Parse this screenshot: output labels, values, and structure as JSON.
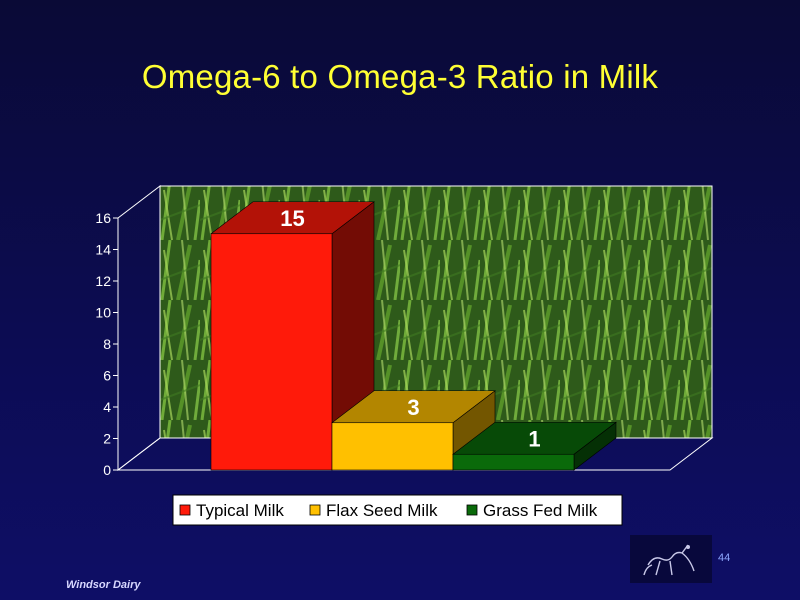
{
  "slide": {
    "title": "Omega-6 to Omega-3 Ratio in Milk",
    "footer": "Windsor Dairy",
    "page_number": "44"
  },
  "colors": {
    "title": "#ffff33",
    "background": "#0c0c52",
    "series": [
      "#ff1a0a",
      "#ffc000",
      "#0a6a0a"
    ]
  },
  "icons": {
    "logo": "horse-and-rider-sketch-logo",
    "plot_background": "grass-photo"
  },
  "chart_data": {
    "type": "bar",
    "style": "3d",
    "categories": [
      "Typical Milk",
      "Flax Seed Milk",
      "Grass Fed Milk"
    ],
    "values": [
      15,
      3,
      1
    ],
    "data_labels": [
      "15",
      "3",
      "1"
    ],
    "ylim": [
      0,
      16
    ],
    "yticks": [
      0,
      2,
      4,
      6,
      8,
      10,
      12,
      14,
      16
    ],
    "ytick_labels": [
      "0",
      "2",
      "4",
      "6",
      "8",
      "10",
      "12",
      "14",
      "16"
    ],
    "legend": [
      "Typical Milk",
      "Flax Seed Milk",
      "Grass Fed Milk"
    ],
    "legend_position": "bottom",
    "grid": false
  }
}
